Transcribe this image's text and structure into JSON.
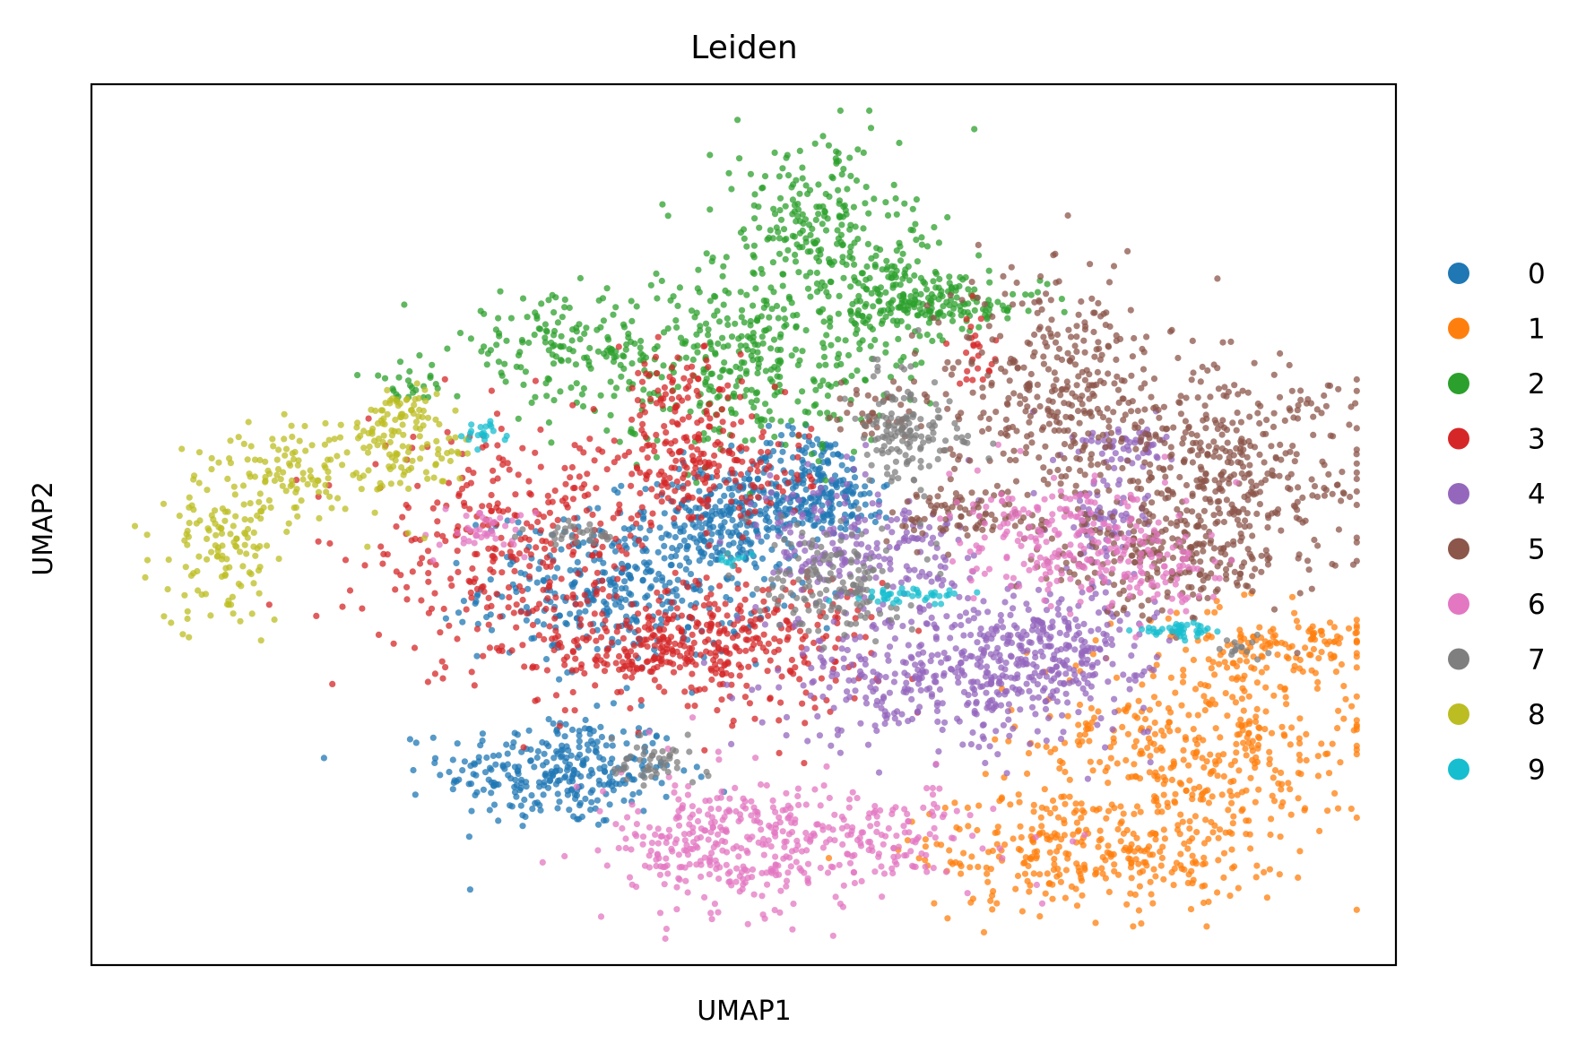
{
  "chart_data": {
    "type": "scatter",
    "title": "Leiden",
    "xlabel": "UMAP1",
    "ylabel": "UMAP2",
    "xlim": [
      0,
      100
    ],
    "ylim": [
      0,
      100
    ],
    "grid": false,
    "ticks": false,
    "legend_position": "right",
    "series": [
      {
        "name": "0",
        "color": "#1f77b4",
        "blobs": [
          {
            "cx": 36,
            "cy": 22,
            "sx": 4.5,
            "sy": 3.2,
            "n": 300
          },
          {
            "cx": 41,
            "cy": 43,
            "sx": 5.5,
            "sy": 4.2,
            "n": 380
          },
          {
            "cx": 49,
            "cy": 51,
            "sx": 3.5,
            "sy": 3.0,
            "n": 220
          },
          {
            "cx": 55,
            "cy": 55,
            "sx": 2.6,
            "sy": 3.0,
            "n": 170
          },
          {
            "cx": 58,
            "cy": 52,
            "sx": 1.8,
            "sy": 1.4,
            "n": 50
          }
        ]
      },
      {
        "name": "1",
        "color": "#ff7f0e",
        "blobs": [
          {
            "cx": 85,
            "cy": 25,
            "sx": 6.5,
            "sy": 6.5,
            "n": 420
          },
          {
            "cx": 76,
            "cy": 13,
            "sx": 6.5,
            "sy": 3.5,
            "n": 300
          },
          {
            "cx": 92,
            "cy": 36,
            "sx": 3.2,
            "sy": 2.2,
            "n": 110
          }
        ]
      },
      {
        "name": "2",
        "color": "#2ca02c",
        "blobs": [
          {
            "cx": 50,
            "cy": 68,
            "sx": 5.5,
            "sy": 5.0,
            "n": 330
          },
          {
            "cx": 55,
            "cy": 84,
            "sx": 3.5,
            "sy": 5.0,
            "n": 220
          },
          {
            "cx": 61,
            "cy": 76,
            "sx": 3.5,
            "sy": 3.8,
            "n": 170
          },
          {
            "cx": 66,
            "cy": 75,
            "sx": 3.5,
            "sy": 1.2,
            "n": 110
          },
          {
            "cx": 36,
            "cy": 70,
            "sx": 4.0,
            "sy": 3.0,
            "n": 150
          },
          {
            "cx": 24,
            "cy": 66,
            "sx": 1.6,
            "sy": 1.3,
            "n": 25
          }
        ]
      },
      {
        "name": "3",
        "color": "#d62728",
        "blobs": [
          {
            "cx": 32,
            "cy": 47,
            "sx": 5.5,
            "sy": 6.5,
            "n": 330
          },
          {
            "cx": 49,
            "cy": 37,
            "sx": 5.5,
            "sy": 4.0,
            "n": 300
          },
          {
            "cx": 42,
            "cy": 35,
            "sx": 3.5,
            "sy": 2.2,
            "n": 130
          },
          {
            "cx": 47,
            "cy": 56,
            "sx": 4.0,
            "sy": 3.0,
            "n": 200
          },
          {
            "cx": 45,
            "cy": 64,
            "sx": 2.5,
            "sy": 3.0,
            "n": 80
          },
          {
            "cx": 68,
            "cy": 70,
            "sx": 0.8,
            "sy": 2.2,
            "n": 25
          }
        ]
      },
      {
        "name": "4",
        "color": "#9467bd",
        "blobs": [
          {
            "cx": 66,
            "cy": 33,
            "sx": 6.5,
            "sy": 4.0,
            "n": 400
          },
          {
            "cx": 74,
            "cy": 36,
            "sx": 3.5,
            "sy": 3.5,
            "n": 200
          },
          {
            "cx": 56,
            "cy": 48,
            "sx": 2.5,
            "sy": 4.0,
            "n": 120
          },
          {
            "cx": 63,
            "cy": 47,
            "sx": 2.5,
            "sy": 4.0,
            "n": 100
          },
          {
            "cx": 78,
            "cy": 52,
            "sx": 1.8,
            "sy": 5.0,
            "n": 90
          },
          {
            "cx": 80,
            "cy": 59,
            "sx": 2.0,
            "sy": 1.2,
            "n": 40
          }
        ]
      },
      {
        "name": "5",
        "color": "#8c564b",
        "blobs": [
          {
            "cx": 74,
            "cy": 66,
            "sx": 4.5,
            "sy": 6.5,
            "n": 360
          },
          {
            "cx": 87,
            "cy": 56,
            "sx": 5.5,
            "sy": 6.0,
            "n": 400
          },
          {
            "cx": 82,
            "cy": 46,
            "sx": 4.5,
            "sy": 3.0,
            "n": 200
          },
          {
            "cx": 68,
            "cy": 51,
            "sx": 3.2,
            "sy": 1.6,
            "n": 90
          },
          {
            "cx": 60,
            "cy": 63,
            "sx": 2.5,
            "sy": 1.8,
            "n": 40
          }
        ]
      },
      {
        "name": "6",
        "color": "#e377c2",
        "blobs": [
          {
            "cx": 48,
            "cy": 13,
            "sx": 4.5,
            "sy": 4.0,
            "n": 260
          },
          {
            "cx": 58,
            "cy": 15,
            "sx": 5.5,
            "sy": 2.8,
            "n": 200
          },
          {
            "cx": 75,
            "cy": 48,
            "sx": 4.5,
            "sy": 3.5,
            "n": 220
          },
          {
            "cx": 82,
            "cy": 44,
            "sx": 2.2,
            "sy": 2.2,
            "n": 60
          },
          {
            "cx": 30,
            "cy": 49,
            "sx": 2.0,
            "sy": 1.2,
            "n": 40
          }
        ]
      },
      {
        "name": "7",
        "color": "#7f7f7f",
        "blobs": [
          {
            "cx": 57,
            "cy": 44,
            "sx": 2.5,
            "sy": 3.5,
            "n": 150
          },
          {
            "cx": 62,
            "cy": 61,
            "sx": 1.5,
            "sy": 3.5,
            "n": 110
          },
          {
            "cx": 43,
            "cy": 23,
            "sx": 2.0,
            "sy": 1.2,
            "n": 50
          },
          {
            "cx": 37,
            "cy": 49,
            "sx": 1.6,
            "sy": 0.8,
            "n": 30
          },
          {
            "cx": 65,
            "cy": 60,
            "sx": 2.0,
            "sy": 0.8,
            "n": 30
          },
          {
            "cx": 88,
            "cy": 36,
            "sx": 1.2,
            "sy": 0.6,
            "n": 15
          }
        ]
      },
      {
        "name": "8",
        "color": "#bcbd22",
        "blobs": [
          {
            "cx": 10,
            "cy": 48,
            "sx": 2.5,
            "sy": 5.0,
            "n": 130
          },
          {
            "cx": 17,
            "cy": 56,
            "sx": 3.5,
            "sy": 3.0,
            "n": 110
          },
          {
            "cx": 24,
            "cy": 59,
            "sx": 2.8,
            "sy": 2.5,
            "n": 90
          },
          {
            "cx": 24,
            "cy": 63,
            "sx": 1.2,
            "sy": 1.6,
            "n": 30
          }
        ]
      },
      {
        "name": "9",
        "color": "#17becf",
        "blobs": [
          {
            "cx": 63,
            "cy": 42,
            "sx": 2.0,
            "sy": 0.4,
            "n": 40
          },
          {
            "cx": 84,
            "cy": 38,
            "sx": 2.0,
            "sy": 0.4,
            "n": 40
          },
          {
            "cx": 30,
            "cy": 60,
            "sx": 0.6,
            "sy": 1.0,
            "n": 20
          },
          {
            "cx": 49,
            "cy": 46,
            "sx": 0.8,
            "sy": 0.5,
            "n": 10
          }
        ]
      }
    ]
  }
}
